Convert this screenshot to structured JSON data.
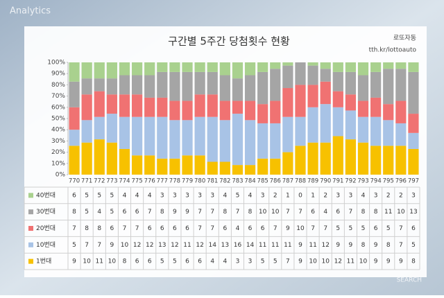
{
  "background_label": "Analytics",
  "corner_label": "SEARCH",
  "chart_data": {
    "type": "bar",
    "stacking": "percent",
    "title": "구간별 5주간 당첨횟수 현황",
    "source_name": "로또자동",
    "source_url": "tth.kr/lottoauto",
    "categories": [
      "770",
      "771",
      "772",
      "773",
      "774",
      "775",
      "776",
      "777",
      "778",
      "779",
      "780",
      "781",
      "782",
      "783",
      "784",
      "785",
      "786",
      "787",
      "788",
      "789",
      "790",
      "791",
      "792",
      "793",
      "794",
      "795",
      "796",
      "797"
    ],
    "series": [
      {
        "name": "1번대",
        "color": "#f7c100",
        "values": [
          9,
          10,
          11,
          10,
          8,
          6,
          6,
          5,
          5,
          6,
          6,
          4,
          4,
          3,
          3,
          5,
          5,
          7,
          9,
          10,
          10,
          12,
          11,
          10,
          9,
          9,
          9,
          8
        ]
      },
      {
        "name": "10번대",
        "color": "#a8c3e6",
        "values": [
          5,
          7,
          7,
          9,
          10,
          12,
          12,
          13,
          12,
          11,
          12,
          14,
          13,
          16,
          14,
          11,
          11,
          11,
          9,
          11,
          12,
          9,
          9,
          8,
          9,
          8,
          7,
          5
        ]
      },
      {
        "name": "20번대",
        "color": "#f07272",
        "values": [
          7,
          8,
          8,
          6,
          7,
          7,
          6,
          6,
          6,
          6,
          7,
          7,
          6,
          4,
          6,
          6,
          7,
          9,
          10,
          7,
          7,
          5,
          5,
          5,
          6,
          5,
          7,
          6
        ]
      },
      {
        "name": "30번대",
        "color": "#a5a5a5",
        "values": [
          8,
          5,
          4,
          5,
          6,
          6,
          7,
          8,
          9,
          9,
          7,
          7,
          8,
          7,
          8,
          10,
          10,
          7,
          7,
          6,
          4,
          6,
          7,
          8,
          8,
          11,
          10,
          13
        ]
      },
      {
        "name": "40번대",
        "color": "#a9d18e",
        "values": [
          6,
          5,
          5,
          5,
          4,
          4,
          4,
          3,
          3,
          3,
          3,
          3,
          4,
          5,
          4,
          3,
          2,
          1,
          0,
          1,
          2,
          3,
          3,
          4,
          3,
          2,
          2,
          3
        ]
      }
    ],
    "ylim": [
      0,
      100
    ],
    "yticks": [
      {
        "value": 0,
        "label": "0%"
      },
      {
        "value": 10,
        "label": "10%"
      },
      {
        "value": 20,
        "label": "20%"
      },
      {
        "value": 30,
        "label": "30%"
      },
      {
        "value": 40,
        "label": "40%"
      },
      {
        "value": 50,
        "label": "50%"
      },
      {
        "value": 60,
        "label": "60%"
      },
      {
        "value": 70,
        "label": "70%"
      },
      {
        "value": 80,
        "label": "80%"
      },
      {
        "value": 90,
        "label": "90%"
      },
      {
        "value": 100,
        "label": "100%"
      }
    ],
    "grid": false,
    "data_table": true
  }
}
